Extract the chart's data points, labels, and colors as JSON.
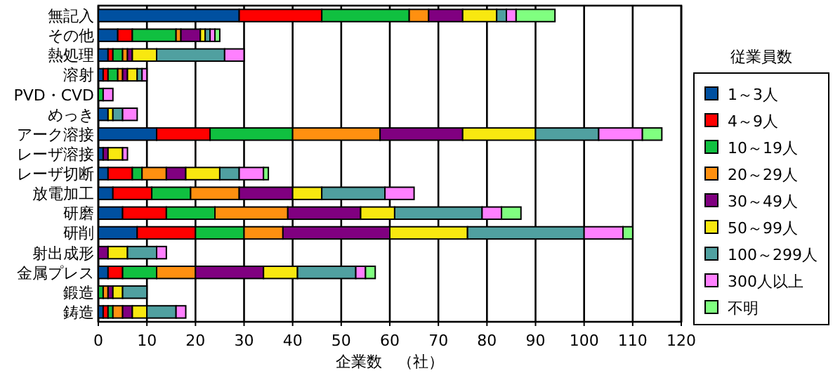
{
  "chart_data": {
    "type": "bar",
    "orientation": "horizontal",
    "stacked": true,
    "xlabel": "企業数　（社）",
    "legend_title": "従業員数",
    "legend": "right",
    "grid": "x",
    "xlim": [
      0,
      120
    ],
    "xticks": [
      0,
      10,
      20,
      30,
      40,
      50,
      60,
      70,
      80,
      90,
      100,
      110,
      120
    ],
    "categories": [
      "無記入",
      "その他",
      "熱処理",
      "溶射",
      "PVD・CVD",
      "めっき",
      "アーク溶接",
      "レーザ溶接",
      "レーザ切断",
      "放電加工",
      "研磨",
      "研削",
      "射出成形",
      "金属プレス",
      "鍛造",
      "鋳造"
    ],
    "series": [
      {
        "name": "1～3人",
        "color": "#0050a0",
        "values": [
          29,
          4,
          2,
          1,
          0,
          2,
          12,
          1,
          2,
          3,
          5,
          8,
          0,
          2,
          0,
          1
        ]
      },
      {
        "name": "4～9人",
        "color": "#ff0000",
        "values": [
          17,
          3,
          1,
          1,
          0,
          0,
          11,
          0,
          5,
          8,
          9,
          12,
          0,
          3,
          0,
          1
        ]
      },
      {
        "name": "10～19人",
        "color": "#10c040",
        "values": [
          18,
          9,
          2,
          2,
          1,
          0,
          17,
          0,
          2,
          8,
          10,
          10,
          0,
          7,
          1,
          1
        ]
      },
      {
        "name": "20～29人",
        "color": "#ff9010",
        "values": [
          4,
          1,
          1,
          1,
          0,
          0,
          18,
          0,
          5,
          10,
          15,
          8,
          0,
          8,
          1,
          2
        ]
      },
      {
        "name": "30～49人",
        "color": "#800080",
        "values": [
          7,
          4,
          1,
          1,
          0,
          0,
          17,
          1,
          4,
          11,
          15,
          22,
          2,
          14,
          1,
          2
        ]
      },
      {
        "name": "50～99人",
        "color": "#f8e810",
        "values": [
          7,
          1,
          5,
          2,
          0,
          1,
          15,
          3,
          7,
          6,
          7,
          16,
          4,
          7,
          2,
          3
        ]
      },
      {
        "name": "100～299人",
        "color": "#50a0a0",
        "values": [
          2,
          1,
          14,
          1,
          0,
          2,
          13,
          0,
          4,
          13,
          18,
          24,
          6,
          12,
          5,
          6
        ]
      },
      {
        "name": "300人以上",
        "color": "#ff80ff",
        "values": [
          2,
          1,
          4,
          1,
          2,
          3,
          9,
          1,
          5,
          6,
          4,
          8,
          2,
          2,
          0,
          2
        ]
      },
      {
        "name": "不明",
        "color": "#80ff80",
        "values": [
          8,
          1,
          0,
          0,
          0,
          0,
          4,
          0,
          1,
          0,
          4,
          2,
          0,
          2,
          0,
          0
        ]
      }
    ]
  }
}
